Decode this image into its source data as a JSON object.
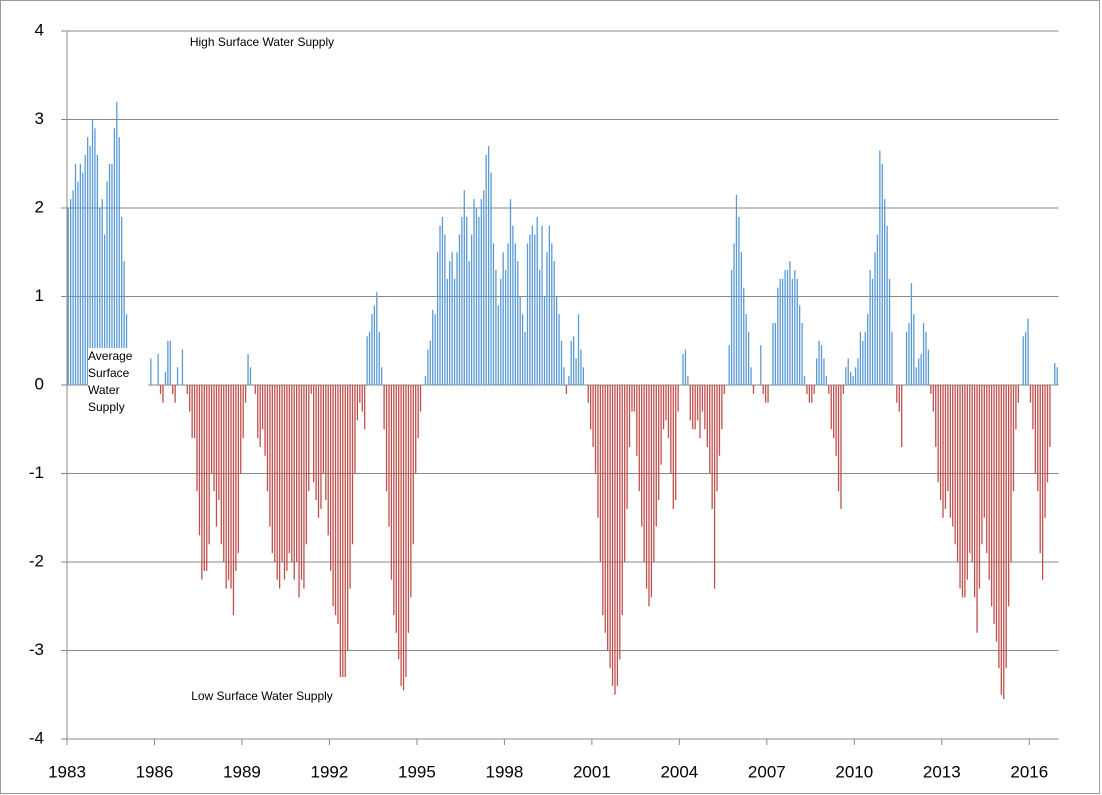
{
  "chart_data": {
    "type": "bar",
    "annotations": [
      "High Surface Water Supply",
      "Average Surface Water Supply",
      "Low Surface Water Supply"
    ],
    "categories": [
      "1983",
      null,
      null,
      null,
      null,
      null,
      null,
      null,
      null,
      null,
      null,
      null,
      null,
      null,
      null,
      null,
      null,
      null,
      null,
      null,
      null,
      null,
      null,
      null,
      null,
      null,
      null,
      null,
      null,
      null,
      null,
      null,
      null,
      null,
      null,
      null,
      "1986",
      null,
      null,
      null,
      null,
      null,
      null,
      null,
      null,
      null,
      null,
      null,
      null,
      null,
      null,
      null,
      null,
      null,
      null,
      null,
      null,
      null,
      null,
      null,
      null,
      null,
      null,
      null,
      null,
      null,
      null,
      null,
      null,
      null,
      null,
      null,
      "1989",
      null,
      null,
      null,
      null,
      null,
      null,
      null,
      null,
      null,
      null,
      null,
      null,
      null,
      null,
      null,
      null,
      null,
      null,
      null,
      null,
      null,
      null,
      null,
      null,
      null,
      null,
      null,
      null,
      null,
      null,
      null,
      null,
      null,
      null,
      null,
      "1992",
      null,
      null,
      null,
      null,
      null,
      null,
      null,
      null,
      null,
      null,
      null,
      null,
      null,
      null,
      null,
      null,
      null,
      null,
      null,
      null,
      null,
      null,
      null,
      null,
      null,
      null,
      null,
      null,
      null,
      null,
      null,
      null,
      null,
      null,
      null,
      "1995",
      null,
      null,
      null,
      null,
      null,
      null,
      null,
      null,
      null,
      null,
      null,
      null,
      null,
      null,
      null,
      null,
      null,
      null,
      null,
      null,
      null,
      null,
      null,
      null,
      null,
      null,
      null,
      null,
      null,
      null,
      null,
      null,
      null,
      null,
      null,
      "1998",
      null,
      null,
      null,
      null,
      null,
      null,
      null,
      null,
      null,
      null,
      null,
      null,
      null,
      null,
      null,
      null,
      null,
      null,
      null,
      null,
      null,
      null,
      null,
      null,
      null,
      null,
      null,
      null,
      null,
      null,
      null,
      null,
      null,
      null,
      null,
      "2001",
      null,
      null,
      null,
      null,
      null,
      null,
      null,
      null,
      null,
      null,
      null,
      null,
      null,
      null,
      null,
      null,
      null,
      null,
      null,
      null,
      null,
      null,
      null,
      null,
      null,
      null,
      null,
      null,
      null,
      null,
      null,
      null,
      null,
      null,
      null,
      "2004",
      null,
      null,
      null,
      null,
      null,
      null,
      null,
      null,
      null,
      null,
      null,
      null,
      null,
      null,
      null,
      null,
      null,
      null,
      null,
      null,
      null,
      null,
      null,
      null,
      null,
      null,
      null,
      null,
      null,
      null,
      null,
      null,
      null,
      null,
      null,
      "2007",
      null,
      null,
      null,
      null,
      null,
      null,
      null,
      null,
      null,
      null,
      null,
      null,
      null,
      null,
      null,
      null,
      null,
      null,
      null,
      null,
      null,
      null,
      null,
      null,
      null,
      null,
      null,
      null,
      null,
      null,
      null,
      null,
      null,
      null,
      null,
      "2010",
      null,
      null,
      null,
      null,
      null,
      null,
      null,
      null,
      null,
      null,
      null,
      null,
      null,
      null,
      null,
      null,
      null,
      null,
      null,
      null,
      null,
      null,
      null,
      null,
      null,
      null,
      null,
      null,
      null,
      null,
      null,
      null,
      null,
      null,
      null,
      "2013",
      null,
      null,
      null,
      null,
      null,
      null,
      null,
      null,
      null,
      null,
      null,
      null,
      null,
      null,
      null,
      null,
      null,
      null,
      null,
      null,
      null,
      null,
      null,
      null,
      null,
      null,
      null,
      null,
      null,
      null,
      null,
      null,
      null,
      null,
      null,
      "2016",
      null,
      null,
      null,
      null,
      null,
      null,
      null,
      null,
      null,
      null,
      null
    ],
    "values": [
      2.0,
      2.1,
      2.2,
      2.5,
      2.3,
      2.5,
      2.4,
      2.6,
      2.8,
      2.7,
      3.0,
      2.9,
      2.6,
      2.0,
      2.1,
      1.7,
      2.3,
      2.5,
      2.5,
      2.9,
      3.2,
      2.8,
      1.9,
      1.4,
      0.8,
      0.3,
      0.2,
      0.1,
      0.1,
      0.2,
      0.1,
      0.0,
      0.0,
      0.0,
      0.3,
      0.0,
      0.0,
      0.35,
      -0.1,
      -0.2,
      0.15,
      0.5,
      0.5,
      -0.1,
      -0.2,
      0.2,
      0.0,
      0.4,
      0.0,
      -0.1,
      -0.3,
      -0.6,
      -0.6,
      -1.2,
      -1.7,
      -2.2,
      -2.1,
      -2.1,
      -1.8,
      -1.0,
      -1.2,
      -1.6,
      -1.3,
      -1.8,
      -2.0,
      -2.3,
      -2.2,
      -2.3,
      -2.6,
      -2.1,
      -1.9,
      -1.0,
      -0.6,
      -0.2,
      0.35,
      0.2,
      0.0,
      -0.1,
      -0.6,
      -0.7,
      -0.5,
      -0.8,
      -1.2,
      -1.6,
      -1.9,
      -2.0,
      -2.2,
      -2.3,
      -2.0,
      -2.2,
      -2.1,
      -1.9,
      -2.0,
      -2.2,
      -2.0,
      -2.4,
      -2.2,
      -2.3,
      -1.8,
      -1.2,
      -0.1,
      -1.1,
      -1.3,
      -1.5,
      -1.4,
      -1.0,
      -1.3,
      -1.7,
      -2.1,
      -2.5,
      -2.6,
      -2.7,
      -3.3,
      -3.3,
      -3.3,
      -3.0,
      -2.3,
      -1.8,
      -1.0,
      -0.4,
      -0.2,
      -0.3,
      -0.5,
      0.55,
      0.6,
      0.8,
      0.9,
      1.05,
      0.6,
      0.2,
      -0.5,
      -1.2,
      -1.6,
      -2.2,
      -2.6,
      -2.8,
      -3.1,
      -3.4,
      -3.45,
      -3.3,
      -2.8,
      -2.4,
      -1.8,
      -1.0,
      -0.6,
      -0.3,
      0.0,
      0.1,
      0.4,
      0.5,
      0.85,
      0.8,
      1.5,
      1.8,
      1.9,
      1.7,
      1.2,
      1.4,
      1.5,
      1.2,
      1.5,
      1.7,
      1.9,
      2.2,
      1.9,
      1.4,
      1.7,
      2.1,
      2.0,
      1.9,
      2.1,
      2.2,
      2.6,
      2.7,
      2.4,
      1.6,
      1.3,
      0.9,
      1.2,
      1.5,
      1.3,
      1.6,
      2.1,
      1.8,
      1.6,
      1.4,
      1.0,
      0.8,
      0.6,
      1.6,
      1.7,
      1.8,
      1.7,
      1.9,
      1.3,
      1.8,
      1.0,
      1.5,
      1.8,
      1.6,
      1.4,
      1.0,
      0.8,
      0.5,
      0.2,
      -0.1,
      0.1,
      0.5,
      0.55,
      0.3,
      0.8,
      0.4,
      0.2,
      0.0,
      -0.2,
      -0.5,
      -0.7,
      -1.0,
      -1.5,
      -2.0,
      -2.6,
      -2.8,
      -3.0,
      -3.2,
      -3.4,
      -3.5,
      -3.4,
      -3.1,
      -2.6,
      -2.0,
      -1.4,
      -0.7,
      -0.3,
      -0.3,
      -0.8,
      -1.2,
      -1.6,
      -2.0,
      -2.3,
      -2.5,
      -2.4,
      -2.0,
      -1.6,
      -1.3,
      -0.9,
      -0.5,
      -0.4,
      -0.6,
      -1.0,
      -1.4,
      -1.3,
      -0.3,
      0.0,
      0.35,
      0.4,
      0.1,
      -0.4,
      -0.5,
      -0.5,
      -0.4,
      -0.6,
      -0.3,
      -0.5,
      -0.7,
      -1.0,
      -1.4,
      -2.3,
      -1.2,
      -0.8,
      -0.5,
      -0.1,
      0.0,
      0.45,
      1.3,
      1.6,
      2.15,
      1.9,
      1.5,
      1.1,
      0.8,
      0.6,
      0.2,
      -0.1,
      0.0,
      0.0,
      0.45,
      -0.1,
      -0.2,
      -0.2,
      0.0,
      0.7,
      0.7,
      1.1,
      1.2,
      1.2,
      1.3,
      1.3,
      1.4,
      1.2,
      1.3,
      1.2,
      0.9,
      0.7,
      0.1,
      -0.1,
      -0.2,
      -0.2,
      -0.1,
      0.3,
      0.5,
      0.45,
      0.3,
      0.1,
      -0.1,
      -0.5,
      -0.6,
      -0.8,
      -1.2,
      -1.4,
      -0.1,
      0.2,
      0.3,
      0.15,
      0.1,
      0.2,
      0.3,
      0.6,
      0.5,
      0.6,
      0.8,
      1.3,
      1.2,
      1.5,
      1.7,
      2.65,
      2.5,
      2.1,
      1.8,
      1.2,
      0.6,
      0.0,
      -0.2,
      -0.3,
      -0.7,
      0.0,
      0.6,
      0.7,
      1.15,
      0.8,
      0.2,
      0.3,
      0.35,
      0.7,
      0.6,
      0.4,
      -0.1,
      -0.3,
      -0.7,
      -1.1,
      -1.3,
      -1.5,
      -1.4,
      -1.2,
      -1.5,
      -1.6,
      -1.8,
      -2.0,
      -2.3,
      -2.4,
      -2.4,
      -2.2,
      -1.9,
      -2.0,
      -2.4,
      -2.8,
      -2.3,
      -1.8,
      -1.5,
      -1.9,
      -2.2,
      -2.5,
      -2.7,
      -2.9,
      -3.2,
      -3.5,
      -3.55,
      -3.2,
      -2.5,
      -2.0,
      -1.2,
      -0.5,
      -0.2,
      0.0,
      0.55,
      0.6,
      0.75,
      -0.2,
      -0.5,
      -1.0,
      -1.2,
      -1.9,
      -2.2,
      -1.5,
      -1.1,
      -0.7,
      0.0,
      0.25,
      0.2
    ],
    "color": "#5b9bd5",
    "negative_color": "#c0504d",
    "ylim": [
      -4,
      4
    ],
    "yticks": [
      -4,
      -3,
      -2,
      -1,
      0,
      1,
      2,
      3,
      4
    ],
    "grid": true
  }
}
